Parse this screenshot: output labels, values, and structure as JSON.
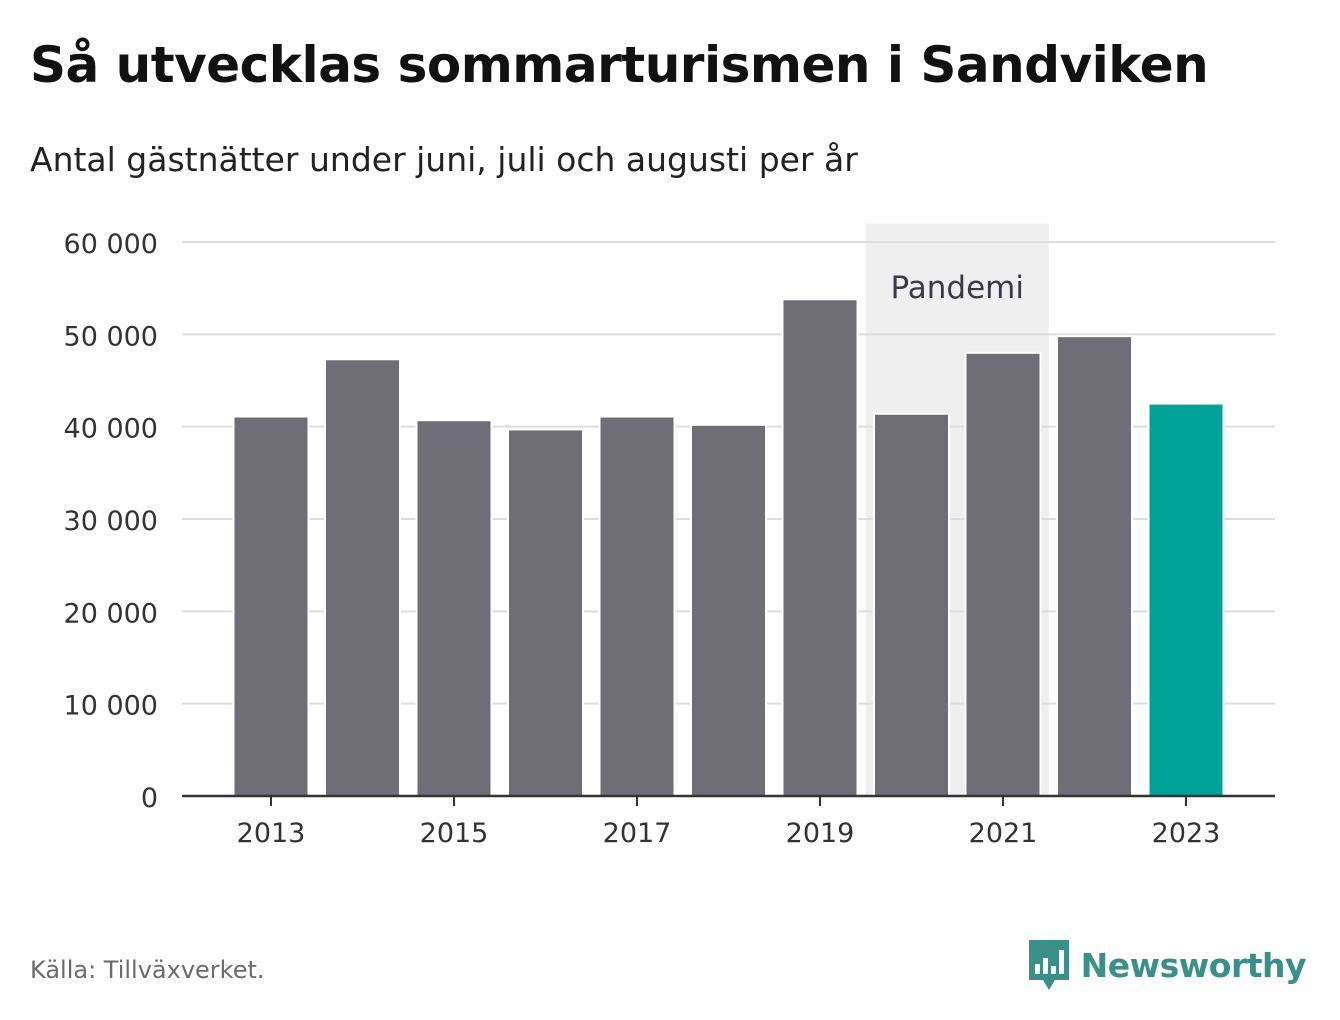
{
  "header": {
    "title": "Så utvecklas sommarturismen i Sandviken",
    "subtitle": "Antal gästnätter under juni, juli och augusti per år"
  },
  "footer": {
    "source": "Källa: Tillväxverket.",
    "brand": "Newsworthy"
  },
  "colors": {
    "bar": "#6f6e76",
    "highlight": "#00a398",
    "band": "#efefef",
    "grid": "#dddddd",
    "axis": "#333333",
    "brand": "#3a8f88"
  },
  "chart_data": {
    "type": "bar",
    "categories": [
      "2013",
      "2014",
      "2015",
      "2016",
      "2017",
      "2018",
      "2019",
      "2020",
      "2021",
      "2022",
      "2023"
    ],
    "values": [
      41100,
      47300,
      40700,
      39700,
      41100,
      40200,
      53800,
      41400,
      48000,
      49800,
      42500
    ],
    "highlight_category": "2023",
    "x_tick_labels": [
      "2013",
      "2015",
      "2017",
      "2019",
      "2021",
      "2023"
    ],
    "y_ticks": [
      0,
      10000,
      20000,
      30000,
      40000,
      50000,
      60000
    ],
    "y_tick_labels": [
      "0",
      "10 000",
      "20 000",
      "30 000",
      "40 000",
      "50 000",
      "60 000"
    ],
    "ylim": [
      0,
      62000
    ],
    "grid": true,
    "annotation": {
      "label": "Pandemi",
      "from_category": "2020",
      "to_category": "2021"
    }
  }
}
